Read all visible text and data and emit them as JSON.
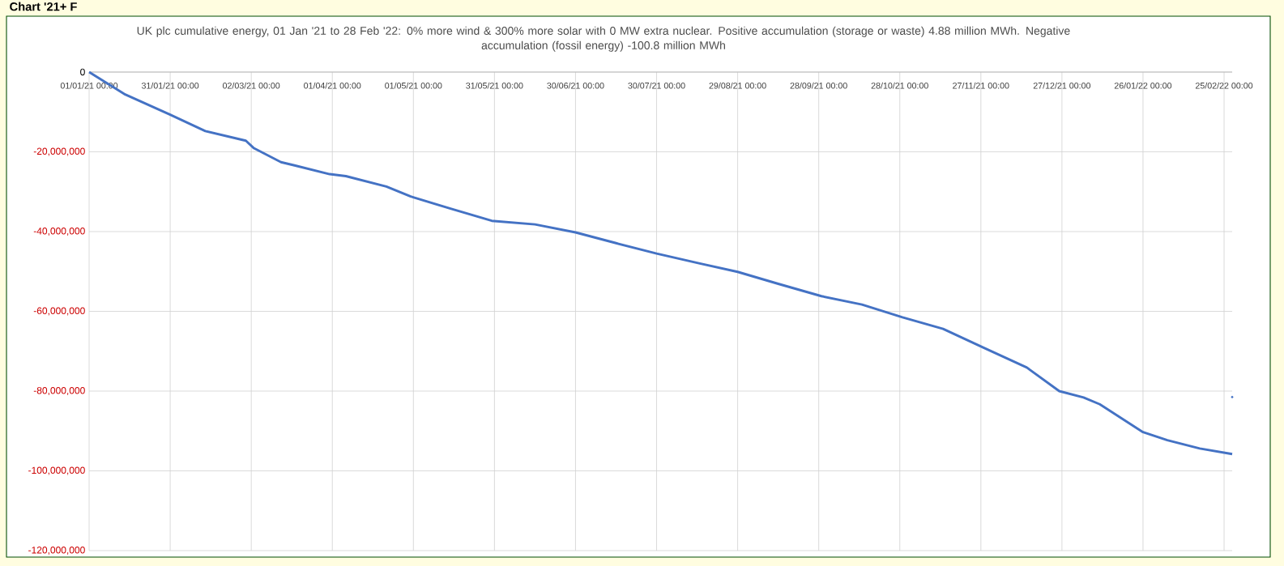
{
  "chart_data": {
    "type": "line",
    "title": "UK plc cumulative energy, 01 Jan '21 to 28 Feb '22: 0% more wind & 300% more solar with 0 MW extra nuclear.  Positive accumulation (storage or waste) 4.88 million MWh.   Negative accumulation (fossil energy) -100.8 million MWh",
    "annotations": [
      "Chart '21+ F"
    ],
    "series": [
      {
        "color": "#4472c4",
        "x": [
          "2021-01-01",
          "2021-01-14",
          "2021-01-31",
          "2021-02-13",
          "2021-02-28",
          "2021-03-03",
          "2021-03-13",
          "2021-03-18",
          "2021-03-31",
          "2021-04-06",
          "2021-04-21",
          "2021-04-30",
          "2021-05-15",
          "2021-05-30",
          "2021-06-15",
          "2021-06-30",
          "2021-07-15",
          "2021-07-30",
          "2021-08-15",
          "2021-08-29",
          "2021-09-13",
          "2021-09-29",
          "2021-10-14",
          "2021-10-29",
          "2021-11-13",
          "2021-11-28",
          "2021-12-14",
          "2021-12-26",
          "2022-01-04",
          "2022-01-10",
          "2022-01-26",
          "2022-02-04",
          "2022-02-16",
          "2022-02-28"
        ],
        "values": [
          0,
          -5500000,
          -10700000,
          -14800000,
          -17200000,
          -19100000,
          -22600000,
          -23400000,
          -25600000,
          -26100000,
          -28700000,
          -31200000,
          -34300000,
          -37300000,
          -38200000,
          -40200000,
          -42900000,
          -45500000,
          -48000000,
          -50100000,
          -53100000,
          -56200000,
          -58300000,
          -61500000,
          -64400000,
          -69100000,
          -74100000,
          -80000000,
          -81600000,
          -83300000,
          -90300000,
          -92300000,
          -94400000,
          -95800000
        ]
      },
      {
        "type": "scatter",
        "color": "#4472c4",
        "x": [
          "2022-02-28"
        ],
        "values": [
          -81500000
        ]
      }
    ],
    "xlim": [
      "2021-01-01",
      "2022-02-28"
    ],
    "xticks": [
      {
        "value": "2021-01-01",
        "label": "01/01/21 00:00"
      },
      {
        "value": "2021-01-31",
        "label": "31/01/21 00:00"
      },
      {
        "value": "2021-03-02",
        "label": "02/03/21 00:00"
      },
      {
        "value": "2021-04-01",
        "label": "01/04/21 00:00"
      },
      {
        "value": "2021-05-01",
        "label": "01/05/21 00:00"
      },
      {
        "value": "2021-05-31",
        "label": "31/05/21 00:00"
      },
      {
        "value": "2021-06-30",
        "label": "30/06/21 00:00"
      },
      {
        "value": "2021-07-30",
        "label": "30/07/21 00:00"
      },
      {
        "value": "2021-08-29",
        "label": "29/08/21 00:00"
      },
      {
        "value": "2021-09-28",
        "label": "28/09/21 00:00"
      },
      {
        "value": "2021-10-28",
        "label": "28/10/21 00:00"
      },
      {
        "value": "2021-11-27",
        "label": "27/11/21 00:00"
      },
      {
        "value": "2021-12-27",
        "label": "27/12/21 00:00"
      },
      {
        "value": "2022-01-26",
        "label": "26/01/22 00:00"
      },
      {
        "value": "2022-02-25",
        "label": "25/02/22 00:00"
      }
    ],
    "ylim": [
      -120000000,
      0
    ],
    "yticks": [
      0,
      {
        "value": -20000000,
        "label": "-20,000,000"
      },
      {
        "value": -40000000,
        "label": "-40,000,000"
      },
      {
        "value": -60000000,
        "label": "-60,000,000"
      },
      {
        "value": -80000000,
        "label": "-80,000,000"
      },
      {
        "value": -100000000,
        "label": "-100,000,000"
      },
      {
        "value": -120000000,
        "label": "-120,000,000"
      }
    ],
    "grid": true,
    "marker": "none",
    "line_style": "solid"
  }
}
